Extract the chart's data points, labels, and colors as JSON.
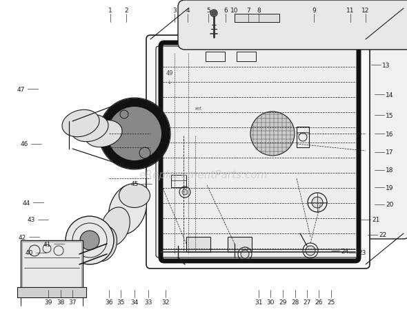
{
  "bg_color": "#ffffff",
  "watermark": "eReplacementParts.com",
  "watermark_color": "#bbbbbb",
  "watermark_alpha": 0.55,
  "line_color": "#1a1a1a",
  "dark_line": "#000000",
  "gray_fill": "#cccccc",
  "dark_fill": "#222222",
  "font_size": 6.5
}
